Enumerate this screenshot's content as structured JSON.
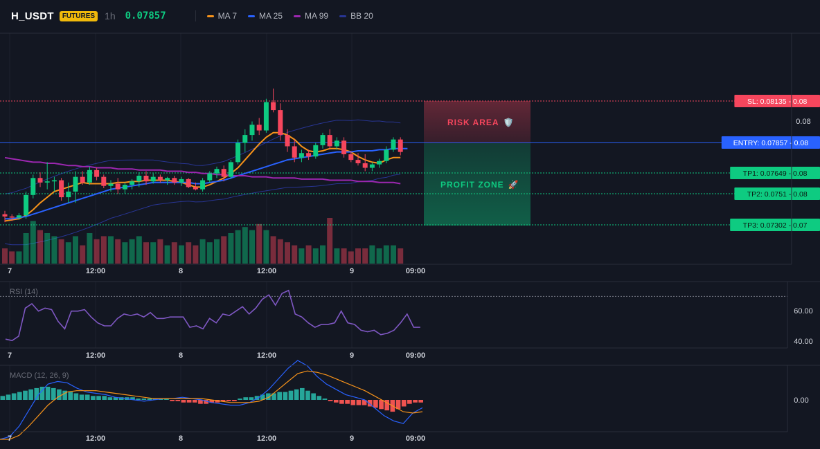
{
  "header": {
    "symbol": "H_USDT",
    "badge": "FUTURES",
    "timeframe": "1h",
    "price": "0.07857",
    "legend": [
      {
        "label": "MA 7",
        "color": "#f7931a"
      },
      {
        "label": "MA 25",
        "color": "#2962ff"
      },
      {
        "label": "MA 99",
        "color": "#9c27b0"
      },
      {
        "label": "BB 20",
        "color": "#283593"
      }
    ]
  },
  "colors": {
    "up": "#0ecb81",
    "down": "#f6465d",
    "bg": "#131722",
    "grid": "#1e222d"
  },
  "levels": {
    "sl": {
      "price": 0.08135,
      "label": "SL: 0.08135",
      "axis": "0.08",
      "color": "#f6465d"
    },
    "entry": {
      "price": 0.07857,
      "label": "ENTRY: 0.07857",
      "axis": "0.08",
      "color": "#2962ff"
    },
    "tp1": {
      "price": 0.07649,
      "label": "TP1: 0.07649",
      "axis": "0.08",
      "color": "#0ecb81"
    },
    "tp2": {
      "price": 0.0751,
      "label": "TP2: 0.0751",
      "axis": "0.08",
      "color": "#0ecb81"
    },
    "tp3": {
      "price": 0.07302,
      "label": "TP3: 0.07302",
      "axis": "0.07",
      "color": "#0ecb81"
    }
  },
  "zones": {
    "risk_label": "RISK AREA",
    "risk_icon": "🛡️",
    "profit_label": "PROFIT ZONE",
    "profit_icon": "🚀"
  },
  "price_axis_tick": "0.08",
  "time_labels": [
    "7",
    "12:00",
    "8",
    "12:00",
    "9",
    "09:00"
  ],
  "rsi": {
    "title": "RSI (14)",
    "ticks": [
      "60.00",
      "40.00"
    ],
    "overbought": 70
  },
  "macd": {
    "title": "MACD (12, 26, 9)",
    "ticks": [
      "0.00"
    ]
  },
  "chart_data": [
    {
      "type": "candlestick",
      "title": "H_USDT 1h",
      "x_time_labels": [
        "7",
        "12:00",
        "8",
        "12:00",
        "9",
        "09:00"
      ],
      "ohlc": [
        [
          0.074,
          0.0743,
          0.0733,
          0.0738
        ],
        [
          0.0738,
          0.074,
          0.0734,
          0.0737
        ],
        [
          0.0737,
          0.0741,
          0.0735,
          0.0739
        ],
        [
          0.0739,
          0.076,
          0.0736,
          0.0757
        ],
        [
          0.0757,
          0.0775,
          0.0754,
          0.0772
        ],
        [
          0.0772,
          0.0777,
          0.0764,
          0.0768
        ],
        [
          0.0768,
          0.0786,
          0.0762,
          0.0769
        ],
        [
          0.0769,
          0.0773,
          0.076,
          0.077
        ],
        [
          0.077,
          0.0772,
          0.0752,
          0.0755
        ],
        [
          0.0755,
          0.0768,
          0.075,
          0.076
        ],
        [
          0.076,
          0.0778,
          0.075,
          0.0773
        ],
        [
          0.0773,
          0.0778,
          0.0766,
          0.0768
        ],
        [
          0.0768,
          0.0782,
          0.0766,
          0.0779
        ],
        [
          0.0779,
          0.0781,
          0.077,
          0.0773
        ],
        [
          0.0773,
          0.0775,
          0.0763,
          0.0765
        ],
        [
          0.0765,
          0.077,
          0.076,
          0.0767
        ],
        [
          0.0767,
          0.0772,
          0.0758,
          0.0762
        ],
        [
          0.0762,
          0.0768,
          0.0758,
          0.0766
        ],
        [
          0.0766,
          0.0771,
          0.0762,
          0.0769
        ],
        [
          0.0769,
          0.0777,
          0.0764,
          0.0774
        ],
        [
          0.0774,
          0.0778,
          0.0766,
          0.0769
        ],
        [
          0.0769,
          0.0776,
          0.0767,
          0.0773
        ],
        [
          0.0773,
          0.0775,
          0.0768,
          0.077
        ],
        [
          0.077,
          0.0773,
          0.0766,
          0.0772
        ],
        [
          0.0772,
          0.0774,
          0.0766,
          0.0768
        ],
        [
          0.0768,
          0.0773,
          0.0765,
          0.0771
        ],
        [
          0.0771,
          0.0772,
          0.0763,
          0.0764
        ],
        [
          0.0764,
          0.0768,
          0.0761,
          0.0762
        ],
        [
          0.0762,
          0.0772,
          0.076,
          0.077
        ],
        [
          0.077,
          0.0778,
          0.0768,
          0.0776
        ],
        [
          0.0776,
          0.0782,
          0.0772,
          0.078
        ],
        [
          0.078,
          0.0783,
          0.0769,
          0.0773
        ],
        [
          0.0773,
          0.0788,
          0.0771,
          0.0786
        ],
        [
          0.0786,
          0.0806,
          0.0784,
          0.0803
        ],
        [
          0.0803,
          0.0815,
          0.0795,
          0.081
        ],
        [
          0.081,
          0.0822,
          0.0805,
          0.0819
        ],
        [
          0.0819,
          0.0825,
          0.081,
          0.0814
        ],
        [
          0.0814,
          0.0842,
          0.0812,
          0.0839
        ],
        [
          0.0839,
          0.0851,
          0.083,
          0.0832
        ],
        [
          0.0832,
          0.0838,
          0.0805,
          0.081
        ],
        [
          0.081,
          0.0815,
          0.0795,
          0.08
        ],
        [
          0.08,
          0.0806,
          0.0786,
          0.079
        ],
        [
          0.079,
          0.0797,
          0.0786,
          0.0794
        ],
        [
          0.0794,
          0.0797,
          0.0788,
          0.0791
        ],
        [
          0.0791,
          0.0803,
          0.0789,
          0.0801
        ],
        [
          0.0801,
          0.0812,
          0.0798,
          0.081
        ],
        [
          0.081,
          0.0815,
          0.0797,
          0.08
        ],
        [
          0.08,
          0.0808,
          0.0797,
          0.0805
        ],
        [
          0.0805,
          0.0808,
          0.079,
          0.0793
        ],
        [
          0.0793,
          0.0796,
          0.0786,
          0.0788
        ],
        [
          0.0788,
          0.0794,
          0.0783,
          0.0785
        ],
        [
          0.0785,
          0.0793,
          0.0778,
          0.0781
        ],
        [
          0.0781,
          0.0786,
          0.0778,
          0.0784
        ],
        [
          0.0784,
          0.0789,
          0.0781,
          0.0787
        ],
        [
          0.0787,
          0.08,
          0.0785,
          0.0797
        ],
        [
          0.0797,
          0.0808,
          0.0795,
          0.0806
        ],
        [
          0.0806,
          0.0808,
          0.0792,
          0.0795
        ]
      ],
      "moving_averages": {
        "MA 7": [
          0.0734,
          0.0735,
          0.0736,
          0.0739,
          0.0744,
          0.075,
          0.0755,
          0.076,
          0.0762,
          0.0764,
          0.0766,
          0.0768,
          0.0767,
          0.0767,
          0.0767,
          0.0767,
          0.0768,
          0.0768,
          0.0769,
          0.0769,
          0.077,
          0.077,
          0.077,
          0.077,
          0.0769,
          0.0768,
          0.0766,
          0.0764,
          0.0764,
          0.0766,
          0.0769,
          0.0772,
          0.0776,
          0.0781,
          0.0788,
          0.0795,
          0.0802,
          0.0808,
          0.0812,
          0.0812,
          0.081,
          0.0806,
          0.08,
          0.0796,
          0.0795,
          0.0796,
          0.0798,
          0.0798,
          0.0797,
          0.0795,
          0.0791,
          0.0788,
          0.0786,
          0.0785,
          0.0788,
          0.079,
          0.079
        ],
        "MA 25": [
          0.0736,
          0.0736,
          0.0737,
          0.0738,
          0.074,
          0.0742,
          0.0744,
          0.0746,
          0.0748,
          0.075,
          0.0752,
          0.0754,
          0.0756,
          0.0758,
          0.076,
          0.0762,
          0.0763,
          0.0764,
          0.0765,
          0.0766,
          0.0767,
          0.0768,
          0.0768,
          0.0768,
          0.0768,
          0.0768,
          0.0768,
          0.0767,
          0.0767,
          0.0768,
          0.0769,
          0.077,
          0.0772,
          0.0774,
          0.0776,
          0.0778,
          0.078,
          0.0782,
          0.0784,
          0.0786,
          0.0788,
          0.0789,
          0.079,
          0.0791,
          0.0792,
          0.0793,
          0.0794,
          0.0795,
          0.0795,
          0.0795,
          0.0796,
          0.0796,
          0.0796,
          0.0797,
          0.0797,
          0.0798,
          0.0798
        ],
        "MA 99": [
          0.079,
          0.0789,
          0.0788,
          0.0787,
          0.0786,
          0.0786,
          0.0785,
          0.0785,
          0.0784,
          0.0783,
          0.0783,
          0.0782,
          0.0782,
          0.0781,
          0.0781,
          0.0781,
          0.078,
          0.078,
          0.078,
          0.0779,
          0.0779,
          0.0779,
          0.0779,
          0.0778,
          0.0778,
          0.0778,
          0.0777,
          0.0777,
          0.0776,
          0.0776,
          0.0775,
          0.0775,
          0.0774,
          0.0774,
          0.0774,
          0.0773,
          0.0773,
          0.0773,
          0.0772,
          0.0772,
          0.0772,
          0.0772,
          0.0771,
          0.0771,
          0.0771,
          0.0771,
          0.077,
          0.077,
          0.077,
          0.077,
          0.0769,
          0.0769,
          0.0769,
          0.0768,
          0.0768,
          0.0768,
          0.0767
        ]
      },
      "volume": [
        5,
        4,
        4,
        10,
        14,
        11,
        10,
        9,
        8,
        7,
        9,
        6,
        10,
        8,
        9,
        9,
        8,
        7,
        8,
        9,
        7,
        7,
        8,
        6,
        7,
        6,
        7,
        6,
        8,
        7,
        8,
        9,
        10,
        11,
        12,
        11,
        13,
        11,
        9,
        8,
        7,
        6,
        5,
        6,
        5,
        6,
        15,
        5,
        5,
        4,
        5,
        5,
        6,
        5,
        6,
        6,
        5
      ]
    },
    {
      "type": "line",
      "title": "RSI (14)",
      "ylim": [
        35,
        80
      ],
      "values": [
        41,
        40,
        43,
        62,
        65,
        60,
        62,
        61,
        53,
        48,
        60,
        60,
        61,
        56,
        52,
        50,
        50,
        55,
        58,
        57,
        58,
        56,
        59,
        55,
        55,
        56,
        56,
        56,
        49,
        50,
        48,
        55,
        52,
        58,
        57,
        60,
        63,
        58,
        62,
        68,
        71,
        64,
        72,
        74,
        58,
        56,
        52,
        49,
        51,
        51,
        52,
        60,
        52,
        51,
        47,
        46,
        47,
        44,
        45,
        47,
        52,
        58,
        49,
        49
      ]
    },
    {
      "type": "line",
      "title": "MACD (12, 26, 9)",
      "series": [
        {
          "values": [
            -0.0003,
            -0.00028,
            -0.0002,
            -8e-05,
            4e-05,
            0.00012,
            0.00014,
            0.00013,
            9e-05,
            6e-05,
            5e-05,
            4e-05,
            2e-05,
            1e-05,
            0.0,
            -1e-05,
            0.0,
            1e-05,
            1e-05,
            2e-05,
            1e-05,
            0.0,
            -2e-05,
            -3e-05,
            -4e-05,
            -4e-05,
            -2e-05,
            2e-05,
            8e-05,
            0.00016,
            0.00024,
            0.0003,
            0.00026,
            0.00018,
            0.00012,
            8e-05,
            4e-05,
            2e-05,
            0.0,
            -6e-05,
            -0.00012,
            -0.00016,
            -0.00018,
            -0.0001,
            -6e-05
          ]
        },
        {
          "values": [
            -0.0003,
            -0.0003,
            -0.00027,
            -0.0002,
            -0.00012,
            -4e-05,
            2e-05,
            6e-05,
            7e-05,
            7e-05,
            7e-05,
            6e-05,
            5e-05,
            4e-05,
            3e-05,
            2e-05,
            1e-05,
            1e-05,
            1e-05,
            1e-05,
            1e-05,
            1e-05,
            0.0,
            -1e-05,
            -2e-05,
            -2e-05,
            -2e-05,
            -1e-05,
            2e-05,
            8e-05,
            0.00014,
            0.0002,
            0.00022,
            0.00021,
            0.00019,
            0.00016,
            0.00013,
            0.0001,
            7e-05,
            3e-05,
            -1e-05,
            -5e-05,
            -9e-05,
            -0.0001,
            -9e-05
          ]
        }
      ],
      "histogram": [
        3e-05,
        4e-05,
        5e-05,
        6e-05,
        7e-05,
        8e-05,
        9e-05,
        0.0001,
        0.0001,
        9e-05,
        8e-05,
        7e-05,
        6e-05,
        5e-05,
        4e-05,
        4e-05,
        3e-05,
        3e-05,
        3e-05,
        2e-05,
        2e-05,
        2e-05,
        2e-05,
        2e-05,
        1e-05,
        1e-05,
        1e-05,
        1e-05,
        1e-05,
        1e-05,
        -1e-05,
        -1e-05,
        -2e-05,
        -2e-05,
        -2e-05,
        -3e-05,
        -3e-05,
        -2e-05,
        -2e-05,
        -1e-05,
        -1e-05,
        -1e-05,
        1e-05,
        2e-05,
        2e-05,
        3e-05,
        4e-05,
        5e-05,
        5e-05,
        6e-05,
        6e-05,
        7e-05,
        8e-05,
        9e-05,
        7e-05,
        5e-05,
        3e-05,
        1e-05,
        -1e-05,
        -2e-05,
        -3e-05,
        -3e-05,
        -4e-05,
        -4e-05,
        -4e-05,
        -5e-05,
        -6e-05,
        -7e-05,
        -8e-05,
        -9e-05,
        -7e-05,
        -5e-05,
        -3e-05,
        -2e-05,
        -2e-05
      ]
    }
  ]
}
